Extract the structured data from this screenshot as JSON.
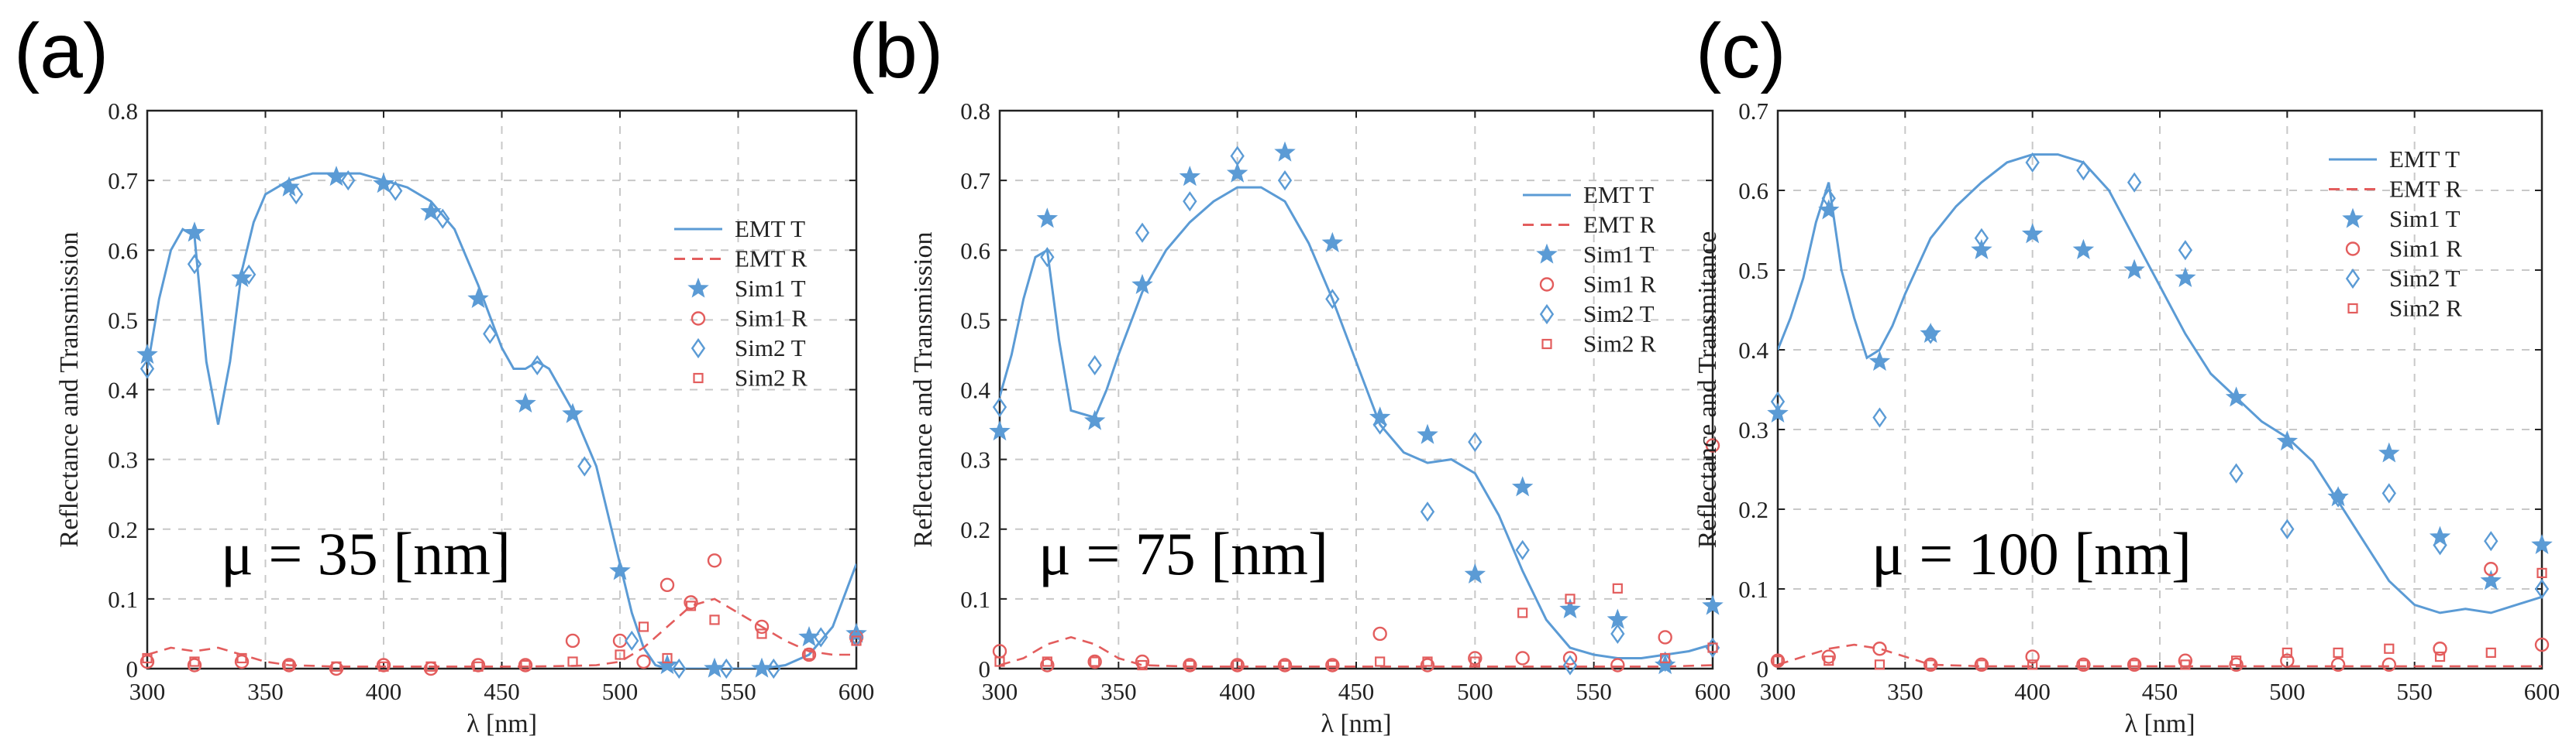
{
  "colors": {
    "t": "#5b9bd5",
    "r": "#e35d5d"
  },
  "chart_data": [
    {
      "type": "line",
      "panel_label": "(a)",
      "annotation": "μ = 35 [nm]",
      "xlabel": "λ [nm]",
      "ylabel": "Reflectance and Transmission",
      "xlim": [
        300,
        600
      ],
      "ylim": [
        0,
        0.8
      ],
      "xticks": [
        300,
        350,
        400,
        450,
        500,
        550,
        600
      ],
      "yticks": [
        0,
        0.1,
        0.2,
        0.3,
        0.4,
        0.5,
        0.6,
        0.7,
        0.8
      ],
      "grid": true,
      "legend_position": "right",
      "series": [
        {
          "name": "EMT T",
          "style": "line",
          "color": "t",
          "x": [
            300,
            305,
            310,
            315,
            320,
            325,
            330,
            335,
            340,
            345,
            350,
            360,
            370,
            380,
            390,
            400,
            410,
            420,
            430,
            440,
            450,
            455,
            460,
            465,
            470,
            480,
            490,
            500,
            505,
            510,
            515,
            520,
            530,
            540,
            550,
            560,
            570,
            580,
            590,
            600
          ],
          "y": [
            0.43,
            0.53,
            0.6,
            0.63,
            0.62,
            0.44,
            0.35,
            0.44,
            0.57,
            0.64,
            0.68,
            0.7,
            0.71,
            0.71,
            0.71,
            0.7,
            0.69,
            0.67,
            0.63,
            0.55,
            0.46,
            0.43,
            0.43,
            0.44,
            0.43,
            0.37,
            0.29,
            0.15,
            0.08,
            0.03,
            0.005,
            0.0,
            0.0,
            0.0,
            0.0,
            0.0,
            0.005,
            0.02,
            0.06,
            0.15
          ]
        },
        {
          "name": "EMT R",
          "style": "dashed",
          "color": "r",
          "x": [
            300,
            310,
            320,
            330,
            340,
            350,
            360,
            380,
            400,
            420,
            440,
            460,
            480,
            490,
            500,
            510,
            520,
            530,
            540,
            550,
            560,
            570,
            580,
            590,
            600
          ],
          "y": [
            0.02,
            0.03,
            0.025,
            0.03,
            0.02,
            0.01,
            0.005,
            0.003,
            0.003,
            0.003,
            0.003,
            0.003,
            0.004,
            0.005,
            0.01,
            0.03,
            0.06,
            0.09,
            0.1,
            0.08,
            0.06,
            0.04,
            0.025,
            0.02,
            0.02
          ]
        },
        {
          "name": "Sim1 T",
          "style": "star",
          "color": "t",
          "x": [
            300,
            320,
            340,
            360,
            380,
            400,
            420,
            440,
            460,
            480,
            500,
            520,
            540,
            560,
            580,
            600
          ],
          "y": [
            0.45,
            0.625,
            0.56,
            0.69,
            0.705,
            0.695,
            0.655,
            0.53,
            0.38,
            0.365,
            0.14,
            0.005,
            0.0,
            0.0,
            0.045,
            0.05
          ]
        },
        {
          "name": "Sim1 R",
          "style": "circle",
          "color": "r",
          "x": [
            300,
            320,
            340,
            360,
            380,
            400,
            420,
            440,
            460,
            480,
            500,
            510,
            520,
            530,
            540,
            560,
            580,
            600
          ],
          "y": [
            0.01,
            0.005,
            0.01,
            0.005,
            0.0,
            0.005,
            0.0,
            0.005,
            0.005,
            0.04,
            0.04,
            0.01,
            0.12,
            0.095,
            0.155,
            0.06,
            0.02,
            0.045
          ]
        },
        {
          "name": "Sim2 T",
          "style": "diamond",
          "color": "t",
          "x": [
            300,
            320,
            343,
            363,
            385,
            405,
            425,
            445,
            465,
            485,
            505,
            525,
            545,
            565,
            585,
            600
          ],
          "y": [
            0.43,
            0.58,
            0.565,
            0.68,
            0.7,
            0.685,
            0.645,
            0.48,
            0.435,
            0.29,
            0.04,
            0.0,
            0.0,
            0.0,
            0.045,
            0.045
          ]
        },
        {
          "name": "Sim2 R",
          "style": "square",
          "color": "r",
          "x": [
            300,
            320,
            340,
            360,
            380,
            400,
            420,
            440,
            460,
            480,
            500,
            510,
            520,
            530,
            540,
            560,
            580,
            600
          ],
          "y": [
            0.015,
            0.01,
            0.015,
            0.005,
            0.003,
            0.003,
            0.003,
            0.003,
            0.005,
            0.01,
            0.02,
            0.06,
            0.015,
            0.09,
            0.07,
            0.05,
            0.02,
            0.04
          ]
        }
      ]
    },
    {
      "type": "line",
      "panel_label": "(b)",
      "annotation": "μ = 75 [nm]",
      "xlabel": "λ [nm]",
      "ylabel": "Reflectance and Transmission",
      "xlim": [
        300,
        600
      ],
      "ylim": [
        0,
        0.8
      ],
      "xticks": [
        300,
        350,
        400,
        450,
        500,
        550,
        600
      ],
      "yticks": [
        0,
        0.1,
        0.2,
        0.3,
        0.4,
        0.5,
        0.6,
        0.7,
        0.8
      ],
      "grid": true,
      "legend_position": "top-right",
      "series": [
        {
          "name": "EMT T",
          "style": "line",
          "color": "t",
          "x": [
            300,
            305,
            310,
            315,
            320,
            325,
            330,
            335,
            340,
            345,
            350,
            360,
            370,
            380,
            390,
            400,
            410,
            420,
            430,
            440,
            450,
            460,
            470,
            480,
            490,
            500,
            510,
            520,
            530,
            540,
            550,
            560,
            570,
            580,
            590,
            600
          ],
          "y": [
            0.39,
            0.45,
            0.53,
            0.59,
            0.6,
            0.47,
            0.37,
            0.365,
            0.36,
            0.4,
            0.45,
            0.54,
            0.6,
            0.64,
            0.67,
            0.69,
            0.69,
            0.67,
            0.61,
            0.53,
            0.44,
            0.35,
            0.31,
            0.295,
            0.3,
            0.28,
            0.22,
            0.14,
            0.07,
            0.03,
            0.02,
            0.015,
            0.015,
            0.02,
            0.025,
            0.035
          ]
        },
        {
          "name": "EMT R",
          "style": "dashed",
          "color": "r",
          "x": [
            300,
            310,
            320,
            330,
            340,
            350,
            360,
            380,
            400,
            420,
            440,
            460,
            480,
            500,
            520,
            540,
            560,
            580,
            600
          ],
          "y": [
            0.005,
            0.015,
            0.035,
            0.045,
            0.035,
            0.015,
            0.005,
            0.003,
            0.003,
            0.003,
            0.003,
            0.003,
            0.003,
            0.003,
            0.003,
            0.003,
            0.003,
            0.003,
            0.005
          ]
        },
        {
          "name": "Sim1 T",
          "style": "star",
          "color": "t",
          "x": [
            300,
            320,
            340,
            360,
            380,
            400,
            420,
            440,
            460,
            480,
            500,
            520,
            540,
            560,
            580,
            600
          ],
          "y": [
            0.34,
            0.645,
            0.355,
            0.55,
            0.705,
            0.71,
            0.74,
            0.61,
            0.36,
            0.335,
            0.135,
            0.26,
            0.085,
            0.07,
            0.005,
            0.09
          ]
        },
        {
          "name": "Sim1 R",
          "style": "circle",
          "color": "r",
          "x": [
            300,
            320,
            340,
            360,
            380,
            400,
            420,
            440,
            460,
            480,
            500,
            520,
            540,
            560,
            580,
            600
          ],
          "y": [
            0.025,
            0.005,
            0.01,
            0.01,
            0.005,
            0.005,
            0.005,
            0.005,
            0.05,
            0.005,
            0.015,
            0.015,
            0.015,
            0.005,
            0.045,
            0.32
          ]
        },
        {
          "name": "Sim2 T",
          "style": "diamond",
          "color": "t",
          "x": [
            300,
            320,
            340,
            360,
            380,
            400,
            420,
            440,
            460,
            480,
            500,
            520,
            540,
            560,
            580,
            600
          ],
          "y": [
            0.375,
            0.59,
            0.435,
            0.625,
            0.67,
            0.735,
            0.7,
            0.53,
            0.35,
            0.225,
            0.325,
            0.17,
            0.005,
            0.05,
            0.01,
            0.03
          ]
        },
        {
          "name": "Sim2 R",
          "style": "square",
          "color": "r",
          "x": [
            300,
            320,
            340,
            360,
            380,
            400,
            420,
            440,
            460,
            480,
            500,
            520,
            540,
            560,
            580,
            600
          ],
          "y": [
            0.01,
            0.01,
            0.01,
            0.005,
            0.005,
            0.005,
            0.005,
            0.005,
            0.01,
            0.01,
            0.01,
            0.08,
            0.1,
            0.115,
            0.015,
            0.03
          ]
        }
      ]
    },
    {
      "type": "line",
      "panel_label": "(c)",
      "annotation": "μ = 100 [nm]",
      "xlabel": "λ [nm]",
      "ylabel": "Reflectance and Transmitance",
      "xlim": [
        300,
        600
      ],
      "ylim": [
        0,
        0.7
      ],
      "xticks": [
        300,
        350,
        400,
        450,
        500,
        550,
        600
      ],
      "yticks": [
        0,
        0.1,
        0.2,
        0.3,
        0.4,
        0.5,
        0.6,
        0.7
      ],
      "grid": true,
      "legend_position": "top-right",
      "series": [
        {
          "name": "EMT T",
          "style": "line",
          "color": "t",
          "x": [
            300,
            305,
            310,
            315,
            320,
            325,
            330,
            335,
            340,
            345,
            350,
            360,
            370,
            380,
            390,
            400,
            410,
            420,
            430,
            440,
            450,
            460,
            470,
            480,
            490,
            500,
            510,
            520,
            530,
            540,
            550,
            560,
            570,
            580,
            590,
            600
          ],
          "y": [
            0.4,
            0.44,
            0.49,
            0.56,
            0.61,
            0.5,
            0.44,
            0.39,
            0.4,
            0.43,
            0.47,
            0.54,
            0.58,
            0.61,
            0.635,
            0.645,
            0.645,
            0.635,
            0.6,
            0.54,
            0.48,
            0.42,
            0.37,
            0.34,
            0.31,
            0.29,
            0.26,
            0.21,
            0.16,
            0.11,
            0.08,
            0.07,
            0.075,
            0.07,
            0.08,
            0.09
          ]
        },
        {
          "name": "EMT R",
          "style": "dashed",
          "color": "r",
          "x": [
            300,
            310,
            320,
            330,
            340,
            350,
            360,
            380,
            400,
            420,
            440,
            460,
            480,
            500,
            520,
            540,
            560,
            580,
            600
          ],
          "y": [
            0.005,
            0.015,
            0.025,
            0.03,
            0.025,
            0.015,
            0.005,
            0.003,
            0.003,
            0.003,
            0.003,
            0.003,
            0.003,
            0.003,
            0.003,
            0.003,
            0.003,
            0.003,
            0.003
          ]
        },
        {
          "name": "Sim1 T",
          "style": "star",
          "color": "t",
          "x": [
            300,
            320,
            340,
            360,
            380,
            400,
            420,
            440,
            460,
            480,
            500,
            520,
            540,
            560,
            580,
            600
          ],
          "y": [
            0.32,
            0.575,
            0.385,
            0.42,
            0.525,
            0.545,
            0.525,
            0.5,
            0.49,
            0.34,
            0.285,
            0.215,
            0.27,
            0.165,
            0.11,
            0.155
          ]
        },
        {
          "name": "Sim1 R",
          "style": "circle",
          "color": "r",
          "x": [
            300,
            320,
            340,
            360,
            380,
            400,
            420,
            440,
            460,
            480,
            500,
            520,
            540,
            560,
            580,
            600
          ],
          "y": [
            0.01,
            0.015,
            0.025,
            0.005,
            0.005,
            0.015,
            0.005,
            0.005,
            0.01,
            0.005,
            0.01,
            0.005,
            0.005,
            0.025,
            0.125,
            0.03
          ]
        },
        {
          "name": "Sim2 T",
          "style": "diamond",
          "color": "t",
          "x": [
            300,
            320,
            340,
            360,
            380,
            400,
            420,
            440,
            460,
            480,
            500,
            520,
            540,
            560,
            580,
            600
          ],
          "y": [
            0.335,
            0.59,
            0.315,
            0.42,
            0.54,
            0.635,
            0.625,
            0.61,
            0.525,
            0.245,
            0.175,
            0.215,
            0.22,
            0.155,
            0.16,
            0.1
          ]
        },
        {
          "name": "Sim2 R",
          "style": "square",
          "color": "r",
          "x": [
            300,
            320,
            340,
            360,
            380,
            400,
            420,
            440,
            460,
            480,
            500,
            520,
            540,
            560,
            580,
            600
          ],
          "y": [
            0.01,
            0.01,
            0.005,
            0.005,
            0.005,
            0.005,
            0.005,
            0.005,
            0.005,
            0.01,
            0.02,
            0.02,
            0.025,
            0.015,
            0.02,
            0.12
          ]
        }
      ]
    }
  ]
}
